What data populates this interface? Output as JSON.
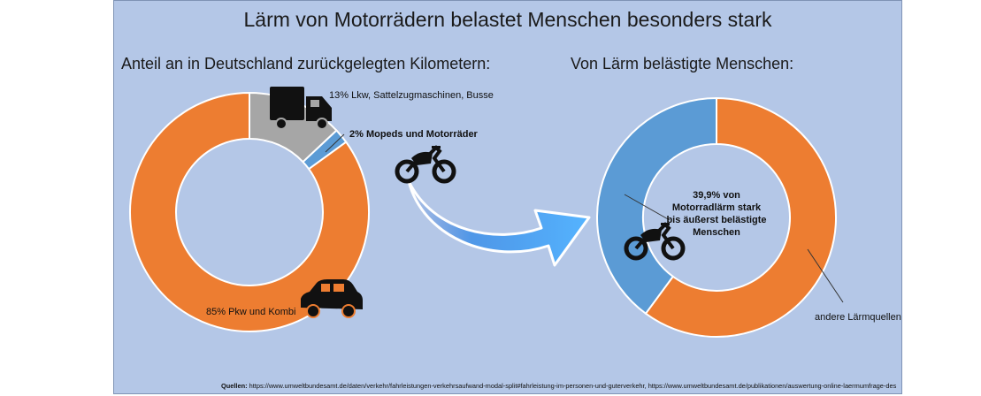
{
  "title": "Lärm von Motorrädern belastet Menschen besonders stark",
  "chart_data": [
    {
      "type": "pie",
      "title": "Anteil an in Deutschland zurückgelegten Kilometern:",
      "slices": [
        {
          "label": "85% Pkw und Kombi",
          "value": 85,
          "color": "#ed7d31"
        },
        {
          "label": "13% Lkw, Sattelzugmaschinen, Busse",
          "value": 13,
          "color": "#a6a6a6"
        },
        {
          "label": "2% Mopeds  und Motorräder",
          "value": 2,
          "color": "#5b9bd5"
        }
      ]
    },
    {
      "type": "pie",
      "title": "Von Lärm belästigte Menschen:",
      "slices": [
        {
          "label": "39,9% von Motorradlärm stark bis äußerst belästigte Menschen",
          "value": 39.9,
          "color": "#5b9bd5"
        },
        {
          "label": "andere Lärmquellen",
          "value": 60.1,
          "color": "#ed7d31"
        }
      ]
    }
  ],
  "labels": {
    "trucks": "13% Lkw, Sattelzugmaschinen, Busse",
    "mopeds": "2% Mopeds  und Motorräder",
    "cars": "85% Pkw und Kombi",
    "center_line1": "39,9% von",
    "center_line2": "Motorradlärm stark",
    "center_line3": "bis äußerst belästigte",
    "center_line4": "Menschen",
    "other": "andere Lärmquellen"
  },
  "icons": [
    "truck-icon",
    "motorcycle-icon",
    "car-icon",
    "curved-arrow-icon"
  ],
  "sources": {
    "label": "Quellen:",
    "text": "https://www.umweltbundesamt.de/daten/verkehr/fahrleistungen-verkehrsaufwand-modal-split#fahrleistung-im-personen-und-guterverkehr, https://www.umweltbundesamt.de/publikationen/auswertung-online-laermumfrage-des"
  }
}
